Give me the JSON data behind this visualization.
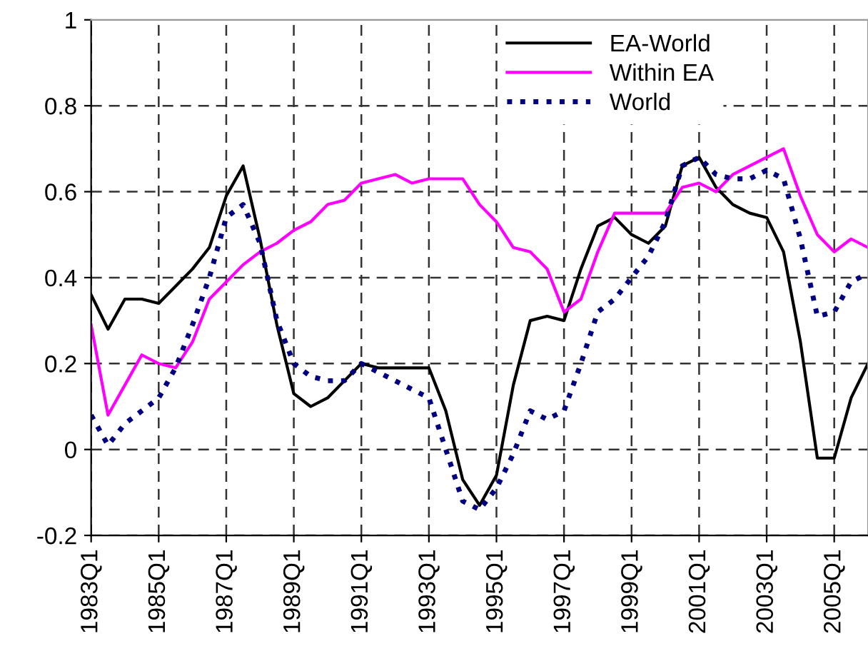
{
  "chart_data": {
    "type": "line",
    "ylim": [
      -0.2,
      1
    ],
    "categories": [
      "1983Q1",
      null,
      null,
      null,
      "1985Q1",
      null,
      null,
      null,
      "1987Q1",
      null,
      null,
      null,
      "1989Q1",
      null,
      null,
      null,
      "1991Q1",
      null,
      null,
      null,
      "1993Q1",
      null,
      null,
      null,
      "1995Q1",
      null,
      null,
      null,
      "1997Q1",
      null,
      null,
      null,
      "1999Q1",
      null,
      null,
      null,
      "2001Q1",
      null,
      null,
      null,
      "2003Q1",
      null,
      null,
      null,
      "2005Q1",
      null,
      null
    ],
    "yticks": [
      {
        "value": -0.2,
        "label": "-0.2"
      },
      0,
      0.2,
      0.4,
      0.6,
      0.8,
      1
    ],
    "grid": true,
    "legend": "top right",
    "marker": "none",
    "series": [
      {
        "name": "EA-World",
        "color": "#000000",
        "line_style": "solid",
        "values": [
          0.36,
          0.28,
          0.35,
          0.35,
          0.34,
          0.38,
          0.42,
          0.47,
          0.59,
          0.66,
          0.49,
          0.29,
          0.13,
          0.1,
          0.12,
          0.16,
          0.2,
          0.19,
          0.19,
          0.19,
          0.19,
          0.09,
          -0.07,
          -0.13,
          -0.06,
          0.15,
          0.3,
          0.31,
          0.3,
          0.42,
          0.52,
          0.54,
          0.5,
          0.48,
          0.52,
          0.66,
          0.68,
          0.61,
          0.57,
          0.55,
          0.54,
          0.46,
          0.25,
          -0.02,
          -0.02,
          0.12,
          0.2
        ]
      },
      {
        "name": "Within EA",
        "color": "#ff00ff",
        "line_style": "solid",
        "values": [
          0.29,
          0.08,
          0.15,
          0.22,
          0.2,
          0.19,
          0.25,
          0.35,
          0.39,
          0.43,
          0.46,
          0.48,
          0.51,
          0.53,
          0.57,
          0.58,
          0.62,
          0.63,
          0.64,
          0.62,
          0.63,
          0.63,
          0.63,
          0.57,
          0.53,
          0.47,
          0.46,
          0.42,
          0.32,
          0.35,
          0.46,
          0.55,
          0.55,
          0.55,
          0.55,
          0.61,
          0.62,
          0.6,
          0.64,
          0.66,
          0.68,
          0.7,
          0.59,
          0.5,
          0.46,
          0.49,
          0.47
        ]
      },
      {
        "name": "World",
        "color": "#000080",
        "line_style": "dotted",
        "values": [
          0.08,
          0.01,
          0.06,
          0.09,
          0.12,
          0.19,
          0.29,
          0.4,
          0.54,
          0.57,
          0.48,
          0.3,
          0.2,
          0.17,
          0.16,
          0.16,
          0.2,
          0.18,
          0.16,
          0.14,
          0.12,
          0.0,
          -0.12,
          -0.14,
          -0.09,
          -0.01,
          0.09,
          0.07,
          0.09,
          0.2,
          0.32,
          0.35,
          0.4,
          0.45,
          0.53,
          0.66,
          0.68,
          0.64,
          0.63,
          0.63,
          0.65,
          0.63,
          0.49,
          0.31,
          0.32,
          0.39,
          0.41
        ]
      }
    ]
  }
}
